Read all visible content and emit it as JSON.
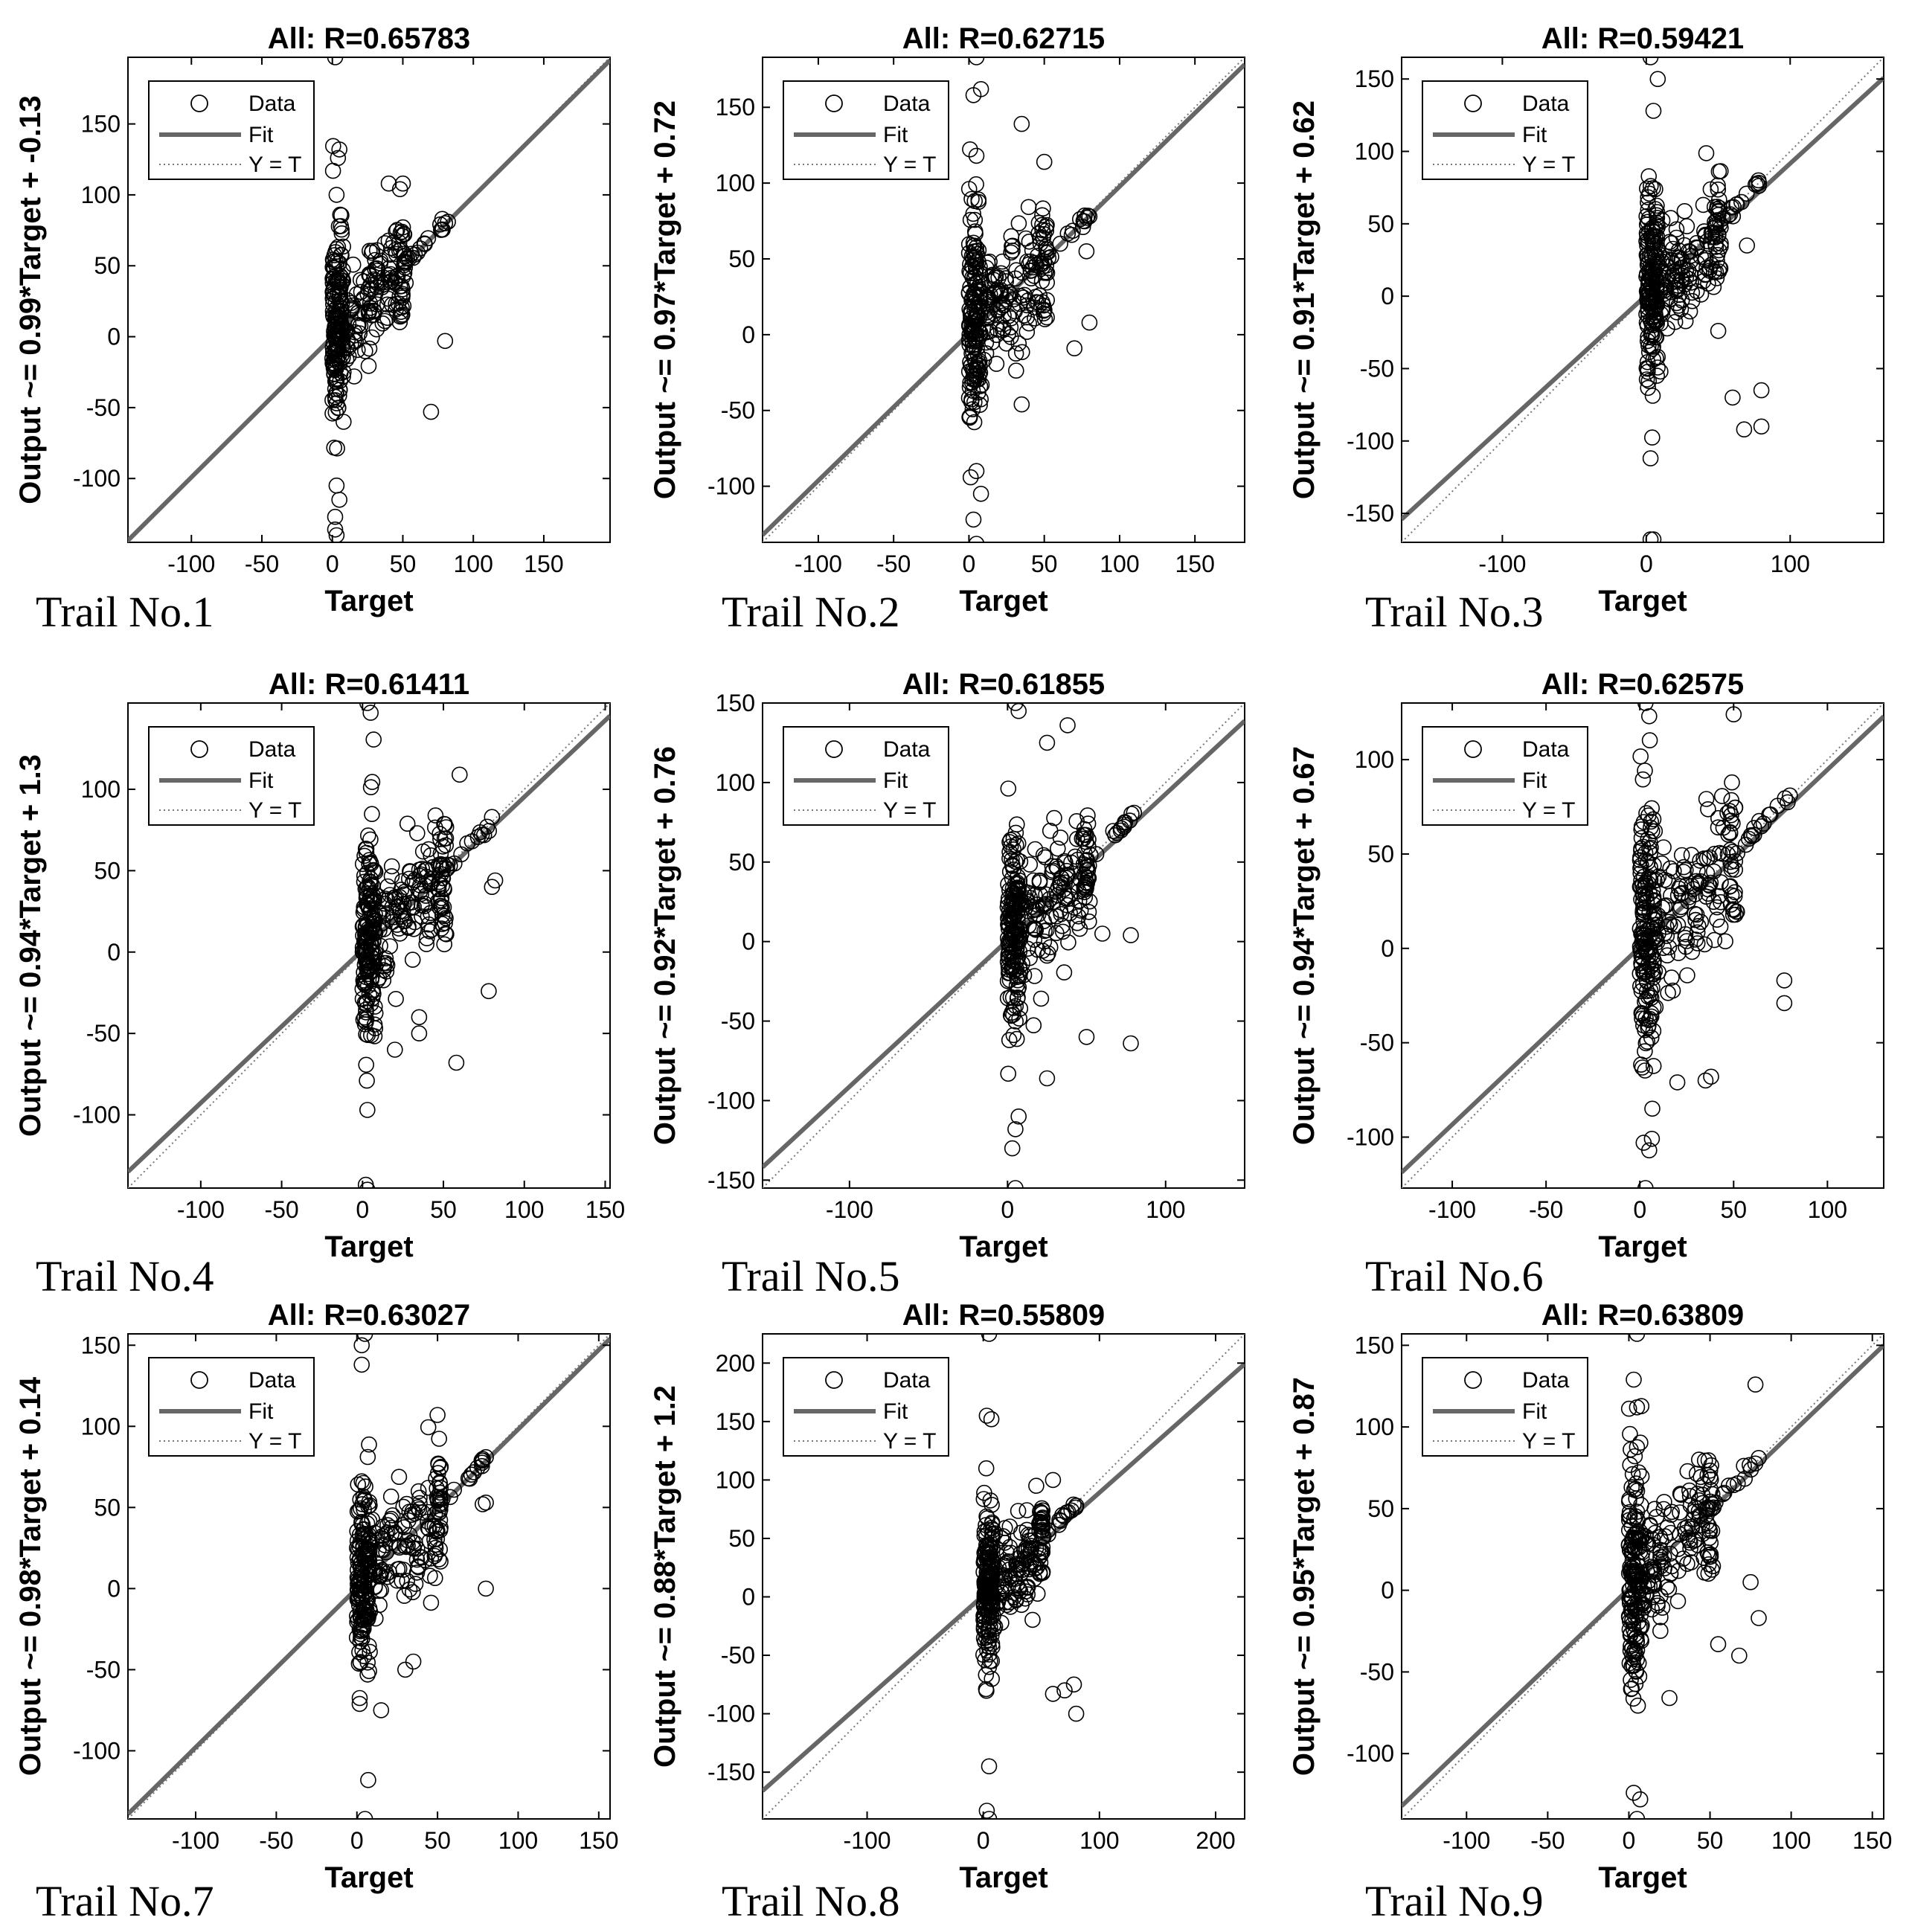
{
  "figure": {
    "captions": [
      "Trail No.1",
      "Trail No.2",
      "Trail No.3",
      "Trail No.4",
      "Trail No.5",
      "Trail No.6",
      "Trail No.7",
      "Trail No.8",
      "Trail No.9"
    ],
    "legend": {
      "data": "Data",
      "fit": "Fit",
      "yt": "Y = T"
    },
    "colors": {
      "fit": "#666666",
      "marker": "#000000",
      "axes": "#000000",
      "yt": "#777777"
    }
  },
  "chart_data": [
    {
      "type": "scatter",
      "title": "All: R=0.65783",
      "xlabel": "Target",
      "ylabel": "Output ~= 0.99*Target + -0.13",
      "xlim": [
        -145,
        197
      ],
      "ylim": [
        -145,
        197
      ],
      "xticks": [
        -100,
        -50,
        0,
        50,
        100,
        150
      ],
      "yticks": [
        -100,
        -50,
        0,
        50,
        100,
        150
      ],
      "fit": {
        "slope": 0.99,
        "intercept": -0.13
      },
      "series": [
        {
          "name": "Data"
        }
      ],
      "seed": 11,
      "outliers": [
        [
          2,
          197
        ],
        [
          5,
          132
        ],
        [
          4,
          126
        ],
        [
          3,
          100
        ],
        [
          70,
          -53
        ],
        [
          80,
          -3
        ],
        [
          50,
          108
        ],
        [
          48,
          104
        ],
        [
          40,
          108
        ],
        [
          3,
          -140
        ],
        [
          2,
          -136
        ],
        [
          2,
          -127
        ],
        [
          5,
          -115
        ],
        [
          3,
          -105
        ],
        [
          78,
          83
        ],
        [
          80,
          80
        ],
        [
          82,
          81
        ]
      ]
    },
    {
      "type": "scatter",
      "title": "All: R=0.62715",
      "xlabel": "Target",
      "ylabel": "Output ~= 0.97*Target + 0.72",
      "xlim": [
        -137,
        183
      ],
      "ylim": [
        -137,
        183
      ],
      "xticks": [
        -100,
        -50,
        0,
        50,
        100,
        150
      ],
      "yticks": [
        -100,
        -50,
        0,
        50,
        100,
        150
      ],
      "fit": {
        "slope": 0.97,
        "intercept": 0.72
      },
      "series": [
        {
          "name": "Data"
        }
      ],
      "seed": 22,
      "outliers": [
        [
          5,
          183
        ],
        [
          8,
          162
        ],
        [
          3,
          158
        ],
        [
          35,
          139
        ],
        [
          50,
          114
        ],
        [
          5,
          118
        ],
        [
          70,
          -9
        ],
        [
          80,
          8
        ],
        [
          35,
          -46
        ],
        [
          5,
          -138
        ],
        [
          3,
          -122
        ],
        [
          8,
          -105
        ],
        [
          5,
          -90
        ],
        [
          78,
          55
        ],
        [
          80,
          78
        ]
      ]
    },
    {
      "type": "scatter",
      "title": "All: R=0.59421",
      "xlabel": "Target",
      "ylabel": "Output ~= 0.91*Target + 0.62",
      "xlim": [
        -170,
        165
      ],
      "ylim": [
        -170,
        165
      ],
      "xticks": [
        -100,
        0,
        100
      ],
      "yticks": [
        -150,
        -100,
        -50,
        0,
        50,
        100,
        150
      ],
      "fit": {
        "slope": 0.91,
        "intercept": 0.62
      },
      "series": [
        {
          "name": "Data"
        }
      ],
      "seed": 33,
      "outliers": [
        [
          3,
          165
        ],
        [
          8,
          150
        ],
        [
          5,
          128
        ],
        [
          60,
          -70
        ],
        [
          70,
          35
        ],
        [
          68,
          -92
        ],
        [
          80,
          -90
        ],
        [
          80,
          -65
        ],
        [
          3,
          -168
        ],
        [
          5,
          -168
        ],
        [
          3,
          -112
        ],
        [
          50,
          -24
        ],
        [
          78,
          80
        ]
      ]
    },
    {
      "type": "scatter",
      "title": "All: R=0.61411",
      "xlabel": "Target",
      "ylabel": "Output ~= 0.94*Target + 1.3",
      "xlim": [
        -145,
        153
      ],
      "ylim": [
        -145,
        153
      ],
      "xticks": [
        -100,
        -50,
        0,
        50,
        100,
        150
      ],
      "yticks": [
        -100,
        -50,
        0,
        50,
        100
      ],
      "fit": {
        "slope": 0.94,
        "intercept": 1.3
      },
      "series": [
        {
          "name": "Data"
        }
      ],
      "seed": 44,
      "outliers": [
        [
          3,
          153
        ],
        [
          5,
          147
        ],
        [
          60,
          109
        ],
        [
          58,
          -68
        ],
        [
          78,
          -24
        ],
        [
          80,
          40
        ],
        [
          82,
          44
        ],
        [
          2,
          -143
        ],
        [
          3,
          -146
        ],
        [
          3,
          -97
        ],
        [
          20,
          -60
        ],
        [
          35,
          -50
        ],
        [
          35,
          -40
        ],
        [
          80,
          83
        ]
      ]
    },
    {
      "type": "scatter",
      "title": "All: R=0.61855",
      "xlabel": "Target",
      "ylabel": "Output ~= 0.92*Target + 0.76",
      "xlim": [
        -155,
        150
      ],
      "ylim": [
        -155,
        150
      ],
      "xticks": [
        -100,
        0,
        100
      ],
      "yticks": [
        -150,
        -100,
        -50,
        0,
        50,
        100,
        150
      ],
      "fit": {
        "slope": 0.92,
        "intercept": 0.76
      },
      "series": [
        {
          "name": "Data"
        }
      ],
      "seed": 55,
      "outliers": [
        [
          5,
          150
        ],
        [
          7,
          145
        ],
        [
          38,
          136
        ],
        [
          25,
          125
        ],
        [
          78,
          -64
        ],
        [
          78,
          4
        ],
        [
          60,
          5
        ],
        [
          5,
          -155
        ],
        [
          3,
          -130
        ],
        [
          5,
          -118
        ],
        [
          7,
          -110
        ],
        [
          25,
          -86
        ],
        [
          50,
          -60
        ],
        [
          80,
          81
        ]
      ]
    },
    {
      "type": "scatter",
      "title": "All: R=0.62575",
      "xlabel": "Target",
      "ylabel": "Output ~= 0.94*Target + 0.67",
      "xlim": [
        -127,
        130
      ],
      "ylim": [
        -127,
        130
      ],
      "xticks": [
        -100,
        -50,
        0,
        50,
        100
      ],
      "yticks": [
        -100,
        -50,
        0,
        50,
        100
      ],
      "fit": {
        "slope": 0.94,
        "intercept": 0.67
      },
      "series": [
        {
          "name": "Data"
        }
      ],
      "seed": 66,
      "outliers": [
        [
          3,
          130
        ],
        [
          5,
          123
        ],
        [
          50,
          124
        ],
        [
          77,
          -17
        ],
        [
          77,
          -29
        ],
        [
          3,
          -127
        ],
        [
          5,
          -107
        ],
        [
          2,
          -103
        ],
        [
          35,
          -70
        ],
        [
          38,
          -68
        ],
        [
          20,
          -71
        ],
        [
          80,
          81
        ]
      ]
    },
    {
      "type": "scatter",
      "title": "All: R=0.63027",
      "xlabel": "Target",
      "ylabel": "Output ~= 0.98*Target + 0.14",
      "xlim": [
        -142,
        157
      ],
      "ylim": [
        -142,
        157
      ],
      "xticks": [
        -100,
        -50,
        0,
        50,
        100,
        150
      ],
      "yticks": [
        -100,
        -50,
        0,
        50,
        100,
        150
      ],
      "fit": {
        "slope": 0.98,
        "intercept": 0.14
      },
      "series": [
        {
          "name": "Data"
        }
      ],
      "seed": 77,
      "outliers": [
        [
          5,
          157
        ],
        [
          3,
          150
        ],
        [
          3,
          138
        ],
        [
          50,
          107
        ],
        [
          80,
          0
        ],
        [
          78,
          52
        ],
        [
          80,
          53
        ],
        [
          5,
          -142
        ],
        [
          7,
          -118
        ],
        [
          15,
          -75
        ],
        [
          30,
          -50
        ],
        [
          35,
          -45
        ],
        [
          80,
          81
        ]
      ]
    },
    {
      "type": "scatter",
      "title": "All: R=0.55809",
      "xlabel": "Target",
      "ylabel": "Output ~= 0.88*Target + 1.2",
      "xlim": [
        -190,
        225
      ],
      "ylim": [
        -190,
        225
      ],
      "xticks": [
        -100,
        0,
        100,
        200
      ],
      "yticks": [
        -150,
        -100,
        -50,
        0,
        50,
        100,
        150,
        200
      ],
      "fit": {
        "slope": 0.88,
        "intercept": 1.2
      },
      "series": [
        {
          "name": "Data"
        }
      ],
      "seed": 88,
      "outliers": [
        [
          5,
          225
        ],
        [
          3,
          155
        ],
        [
          7,
          152
        ],
        [
          60,
          100
        ],
        [
          60,
          -83
        ],
        [
          78,
          -75
        ],
        [
          80,
          -100
        ],
        [
          70,
          -80
        ],
        [
          5,
          -190
        ],
        [
          3,
          -183
        ],
        [
          5,
          -145
        ],
        [
          80,
          78
        ]
      ]
    },
    {
      "type": "scatter",
      "title": "All: R=0.63809",
      "xlabel": "Target",
      "ylabel": "Output ~= 0.95*Target + 0.87",
      "xlim": [
        -140,
        157
      ],
      "ylim": [
        -140,
        157
      ],
      "xticks": [
        -100,
        -50,
        0,
        50,
        100,
        150
      ],
      "yticks": [
        -100,
        -50,
        0,
        50,
        100,
        150
      ],
      "fit": {
        "slope": 0.95,
        "intercept": 0.87
      },
      "series": [
        {
          "name": "Data"
        }
      ],
      "seed": 99,
      "outliers": [
        [
          5,
          157
        ],
        [
          3,
          129
        ],
        [
          5,
          112
        ],
        [
          78,
          126
        ],
        [
          80,
          -17
        ],
        [
          68,
          -40
        ],
        [
          75,
          5
        ],
        [
          5,
          -140
        ],
        [
          3,
          -124
        ],
        [
          7,
          -128
        ],
        [
          25,
          -66
        ],
        [
          55,
          -33
        ],
        [
          80,
          81
        ]
      ]
    }
  ]
}
